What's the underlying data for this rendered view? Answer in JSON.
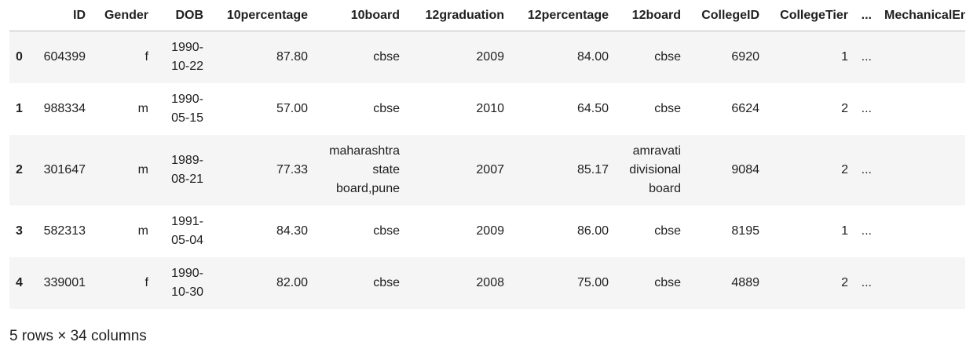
{
  "table": {
    "columns": [
      "",
      "ID",
      "Gender",
      "DOB",
      "10percentage",
      "10board",
      "12graduation",
      "12percentage",
      "12board",
      "CollegeID",
      "CollegeTier",
      "...",
      "MechanicalEngg"
    ],
    "rows": [
      {
        "index": "0",
        "ID": "604399",
        "Gender": "f",
        "DOB": "1990-10-22",
        "10percentage": "87.80",
        "10board": "cbse",
        "12graduation": "2009",
        "12percentage": "84.00",
        "12board": "cbse",
        "CollegeID": "6920",
        "CollegeTier": "1",
        "ellipsis": "..."
      },
      {
        "index": "1",
        "ID": "988334",
        "Gender": "m",
        "DOB": "1990-05-15",
        "10percentage": "57.00",
        "10board": "cbse",
        "12graduation": "2010",
        "12percentage": "64.50",
        "12board": "cbse",
        "CollegeID": "6624",
        "CollegeTier": "2",
        "ellipsis": "..."
      },
      {
        "index": "2",
        "ID": "301647",
        "Gender": "m",
        "DOB": "1989-08-21",
        "10percentage": "77.33",
        "10board": "maharashtra state board,pune",
        "12graduation": "2007",
        "12percentage": "85.17",
        "12board": "amravati divisional board",
        "CollegeID": "9084",
        "CollegeTier": "2",
        "ellipsis": "..."
      },
      {
        "index": "3",
        "ID": "582313",
        "Gender": "m",
        "DOB": "1991-05-04",
        "10percentage": "84.30",
        "10board": "cbse",
        "12graduation": "2009",
        "12percentage": "86.00",
        "12board": "cbse",
        "CollegeID": "8195",
        "CollegeTier": "1",
        "ellipsis": "..."
      },
      {
        "index": "4",
        "ID": "339001",
        "Gender": "f",
        "DOB": "1990-10-30",
        "10percentage": "82.00",
        "10board": "cbse",
        "12graduation": "2008",
        "12percentage": "75.00",
        "12board": "cbse",
        "CollegeID": "4889",
        "CollegeTier": "2",
        "ellipsis": "..."
      }
    ]
  },
  "footer": {
    "summary": "5 rows × 34 columns"
  }
}
